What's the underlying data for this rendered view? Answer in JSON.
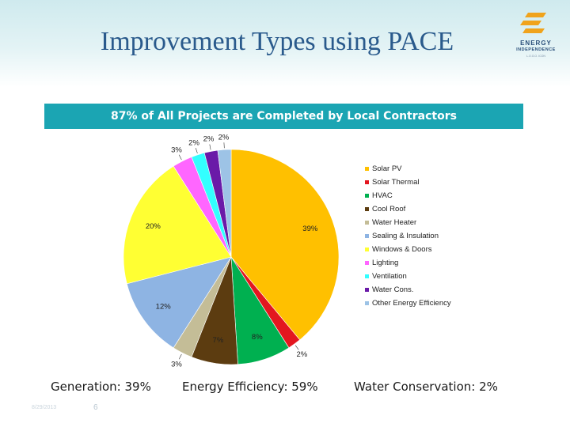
{
  "header": {
    "title": "Improvement Types using PACE",
    "logo_line1": "ENERGY",
    "logo_line2": "INDEPENDENCE",
    "logo_line3": "L.O.G.O. ICON",
    "logo_color": "#f0a31c"
  },
  "banner": {
    "text": "87% of All Projects are Completed by Local Contractors",
    "color": "#1ba5b3"
  },
  "chart_data": {
    "type": "pie",
    "title": "",
    "series": [
      {
        "label": "Solar PV",
        "value": 39,
        "data_label": "39%",
        "color": "#ffc000"
      },
      {
        "label": "Solar Thermal",
        "value": 2,
        "data_label": "2%",
        "color": "#e3161f"
      },
      {
        "label": "HVAC",
        "value": 8,
        "data_label": "8%",
        "color": "#00b050"
      },
      {
        "label": "Cool Roof",
        "value": 7,
        "data_label": "7%",
        "color": "#5c3c10"
      },
      {
        "label": "Water Heater",
        "value": 3,
        "data_label": "3%",
        "color": "#c4bd97"
      },
      {
        "label": "Sealing & Insulation",
        "value": 12,
        "data_label": "12%",
        "color": "#8eb4e3"
      },
      {
        "label": "Windows & Doors",
        "value": 20,
        "data_label": "20%",
        "color": "#ffff33"
      },
      {
        "label": "Lighting",
        "value": 3,
        "data_label": "3%",
        "color": "#ff66ff"
      },
      {
        "label": "Ventilation",
        "value": 2,
        "data_label": "2%",
        "color": "#33ffff"
      },
      {
        "label": "Water Cons.",
        "value": 2,
        "data_label": "2%",
        "color": "#6a1aa8"
      },
      {
        "label": "Other Energy Efficiency",
        "value": 2,
        "data_label": "2%",
        "color": "#9dc3e6"
      }
    ],
    "legend_position": "right"
  },
  "footer": {
    "generation": "Generation: 39%",
    "energy_efficiency": "Energy Efficiency: 59%",
    "water_conservation": "Water Conservation: 2%",
    "date": "8/29/2013",
    "slide_number": "6"
  }
}
